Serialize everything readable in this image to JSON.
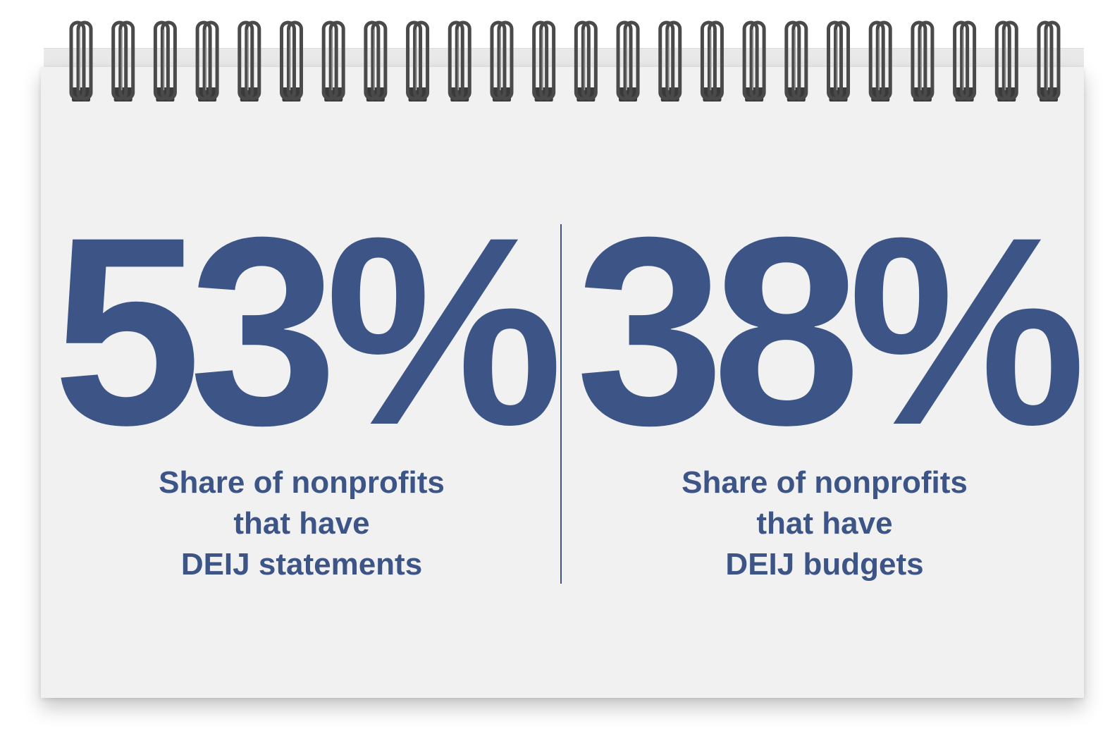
{
  "stats": [
    {
      "value": "53%",
      "caption_lines": [
        "Share of nonprofits",
        "that have",
        "DEIJ statements"
      ]
    },
    {
      "value": "38%",
      "caption_lines": [
        "Share of nonprofits",
        "that have",
        "DEIJ budgets"
      ]
    }
  ],
  "colors": {
    "accent": "#3c5586",
    "paper": "#f1f1f2",
    "spiral": "#4a4a4a"
  }
}
